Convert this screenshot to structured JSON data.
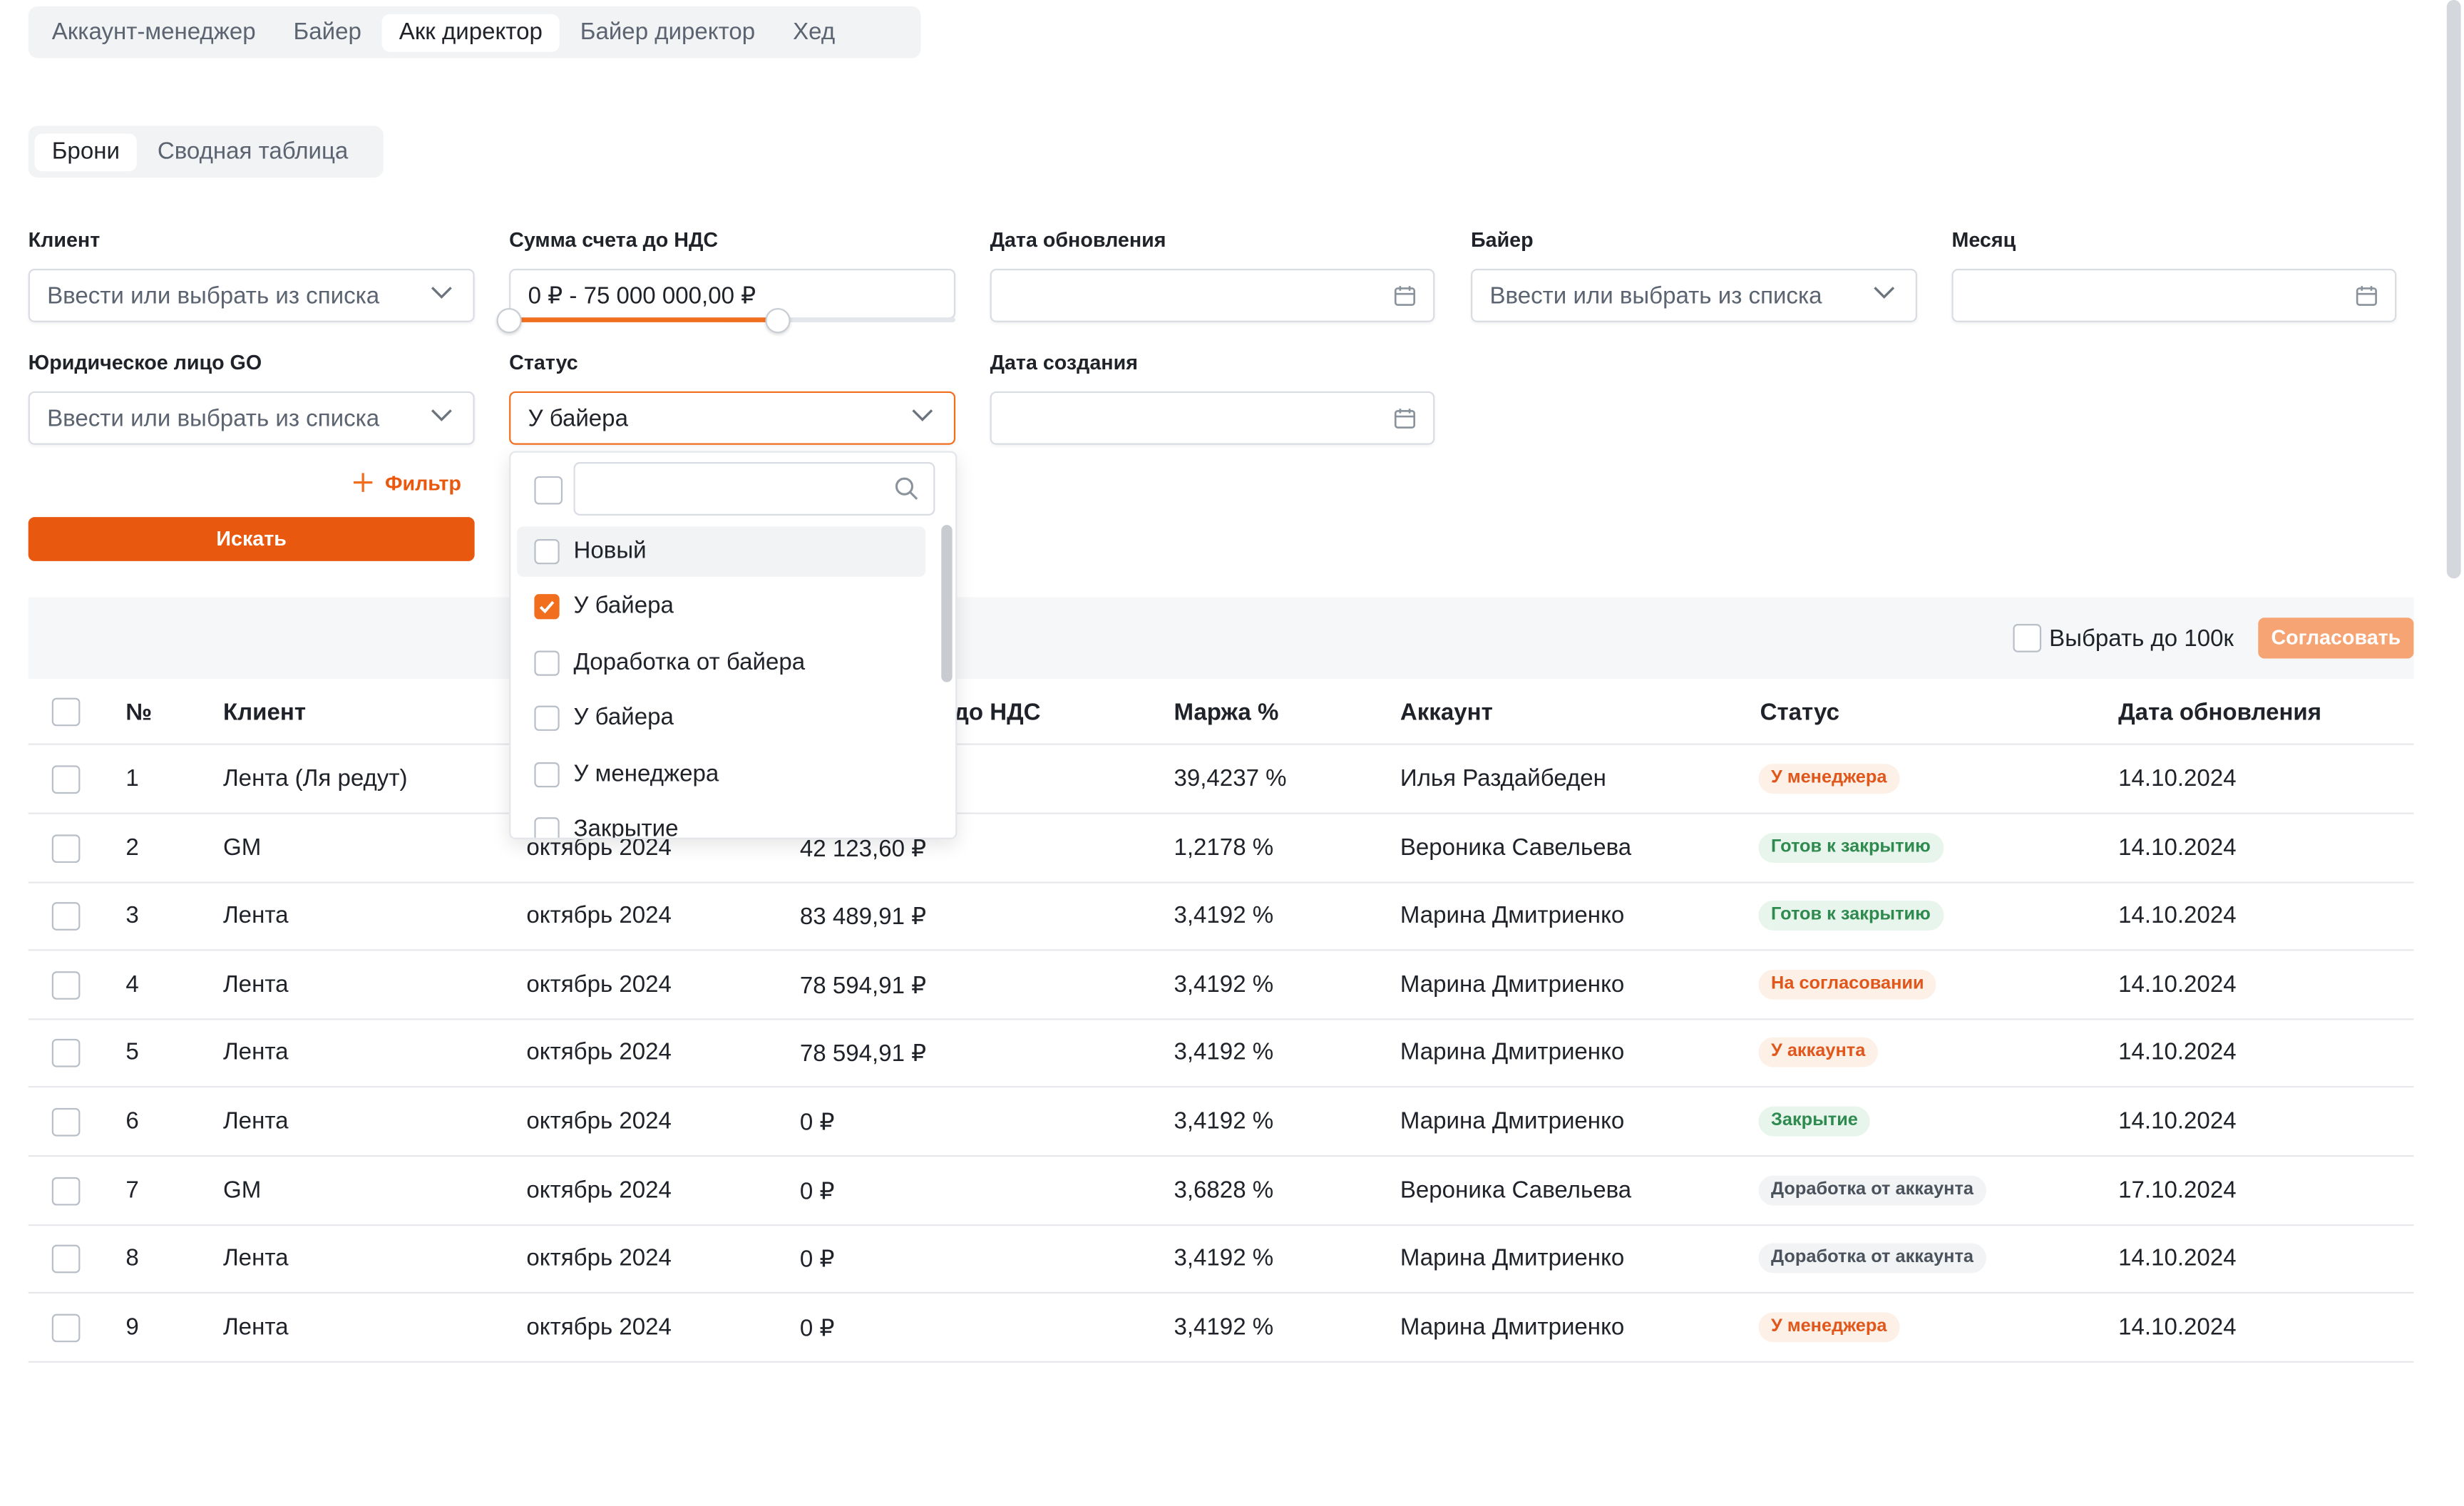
{
  "role_tabs": [
    "Аккаунт-менеджер",
    "Байер",
    "Акк директор",
    "Байер директор",
    "Хед"
  ],
  "role_tabs_active": "Акк директор",
  "view_tabs": [
    "Брони",
    "Сводная таблица"
  ],
  "view_tabs_active": "Брони",
  "filters": {
    "client": {
      "label": "Клиент",
      "placeholder": "Ввести или выбрать из списка"
    },
    "sum": {
      "label": "Сумма счета до НДС",
      "value": "0 ₽ - 75 000 000,00 ₽",
      "range_fill_fraction": 0.6
    },
    "updated": {
      "label": "Дата обновления",
      "value": ""
    },
    "buyer": {
      "label": "Байер",
      "placeholder": "Ввести или выбрать из списка"
    },
    "month": {
      "label": "Месяц",
      "value": ""
    },
    "legal": {
      "label": "Юридическое лицо GO",
      "placeholder": "Ввести или выбрать из списка"
    },
    "status": {
      "label": "Статус",
      "value": "У байера"
    },
    "created": {
      "label": "Дата создания",
      "value": ""
    }
  },
  "add_filter_label": "Фильтр",
  "search_button": "Искать",
  "status_dropdown": {
    "search_value": "",
    "options": [
      {
        "label": "Новый",
        "checked": false
      },
      {
        "label": "У байера",
        "checked": true
      },
      {
        "label": "Доработка от байера",
        "checked": false
      },
      {
        "label": "У байера",
        "checked": false
      },
      {
        "label": "У менеджера",
        "checked": false
      },
      {
        "label": "Закрытие",
        "checked": false
      }
    ]
  },
  "toolbar": {
    "select_100k": "Выбрать до 100к",
    "approve_button": "Согласовать"
  },
  "columns": {
    "num": "№",
    "client": "Клиент",
    "sum": "до НДС",
    "margin": "Маржа %",
    "account": "Аккаунт",
    "status": "Статус",
    "updated": "Дата обновления"
  },
  "rows": [
    {
      "num": "1",
      "client": "Лента (Ля редут)",
      "month": "",
      "sum": "",
      "margin": "39,4237 %",
      "account": "Илья Раздайбеден",
      "status": "У менеджера",
      "status_color": "orange",
      "updated": "14.10.2024"
    },
    {
      "num": "2",
      "client": "GM",
      "month": "октябрь 2024",
      "sum": "42 123,60 ₽",
      "margin": "1,2178 %",
      "account": "Вероника Савельева",
      "status": "Готов к закрытию",
      "status_color": "green",
      "updated": "14.10.2024"
    },
    {
      "num": "3",
      "client": "Лента",
      "month": "октябрь 2024",
      "sum": "83 489,91 ₽",
      "margin": "3,4192 %",
      "account": "Марина Дмитриенко",
      "status": "Готов к закрытию",
      "status_color": "green",
      "updated": "14.10.2024"
    },
    {
      "num": "4",
      "client": "Лента",
      "month": "октябрь 2024",
      "sum": "78 594,91 ₽",
      "margin": "3,4192 %",
      "account": "Марина Дмитриенко",
      "status": "На согласовании",
      "status_color": "orange",
      "updated": "14.10.2024"
    },
    {
      "num": "5",
      "client": "Лента",
      "month": "октябрь 2024",
      "sum": "78 594,91 ₽",
      "margin": "3,4192 %",
      "account": "Марина Дмитриенко",
      "status": "У аккаунта",
      "status_color": "orange",
      "updated": "14.10.2024"
    },
    {
      "num": "6",
      "client": "Лента",
      "month": "октябрь 2024",
      "sum": "0 ₽",
      "margin": "3,4192 %",
      "account": "Марина Дмитриенко",
      "status": "Закрытие",
      "status_color": "green",
      "updated": "14.10.2024"
    },
    {
      "num": "7",
      "client": "GM",
      "month": "октябрь 2024",
      "sum": "0 ₽",
      "margin": "3,6828 %",
      "account": "Вероника Савельева",
      "status": "Доработка от аккаунта",
      "status_color": "gray",
      "updated": "17.10.2024"
    },
    {
      "num": "8",
      "client": "Лента",
      "month": "октябрь 2024",
      "sum": "0 ₽",
      "margin": "3,4192 %",
      "account": "Марина Дмитриенко",
      "status": "Доработка от аккаунта",
      "status_color": "gray",
      "updated": "14.10.2024"
    },
    {
      "num": "9",
      "client": "Лента",
      "month": "октябрь 2024",
      "sum": "0 ₽",
      "margin": "3,4192 %",
      "account": "Марина Дмитриенко",
      "status": "У менеджера",
      "status_color": "orange",
      "updated": "14.10.2024"
    }
  ],
  "colors": {
    "accent": "#e9580f",
    "accent_light": "#f7a474",
    "border": "#d9dde3"
  }
}
